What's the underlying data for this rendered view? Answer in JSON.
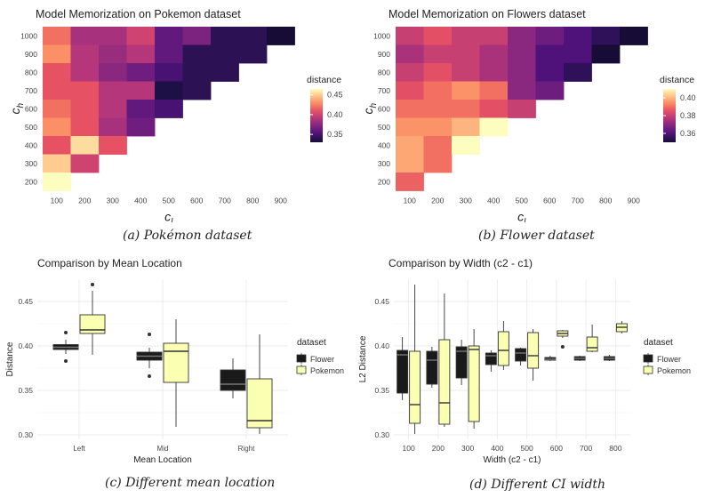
{
  "captions": {
    "a_label": "(a)",
    "a_text": "Pokémon dataset",
    "b_label": "(b)",
    "b_text": "Flower dataset",
    "c_label": "(c)",
    "c_text": "Different mean location",
    "d_label": "(d)",
    "d_text": "Different CI width"
  },
  "chart_data": [
    {
      "type": "heatmap",
      "title": "Model Memorization on Pokemon dataset",
      "xlabel": "c_l",
      "ylabel": "c_h",
      "x_ticks": [
        100,
        200,
        300,
        400,
        500,
        600,
        700,
        800,
        900
      ],
      "y_ticks": [
        200,
        300,
        400,
        500,
        600,
        700,
        800,
        900,
        1000
      ],
      "legend_title": "distance",
      "legend_ticks": [
        0.45,
        0.4,
        0.35
      ],
      "color_range": [
        0.33,
        0.465
      ],
      "cells": [
        [
          100,
          1000,
          0.42
        ],
        [
          200,
          1000,
          0.385
        ],
        [
          300,
          1000,
          0.385
        ],
        [
          400,
          1000,
          0.4
        ],
        [
          500,
          1000,
          0.36
        ],
        [
          600,
          1000,
          0.37
        ],
        [
          700,
          1000,
          0.34
        ],
        [
          800,
          1000,
          0.34
        ],
        [
          900,
          1000,
          0.33
        ],
        [
          100,
          900,
          0.43
        ],
        [
          200,
          900,
          0.39
        ],
        [
          300,
          900,
          0.38
        ],
        [
          400,
          900,
          0.39
        ],
        [
          500,
          900,
          0.36
        ],
        [
          600,
          900,
          0.34
        ],
        [
          700,
          900,
          0.34
        ],
        [
          800,
          900,
          0.34
        ],
        [
          100,
          800,
          0.41
        ],
        [
          200,
          800,
          0.39
        ],
        [
          300,
          800,
          0.375
        ],
        [
          400,
          800,
          0.365
        ],
        [
          500,
          800,
          0.35
        ],
        [
          600,
          800,
          0.34
        ],
        [
          700,
          800,
          0.34
        ],
        [
          100,
          700,
          0.41
        ],
        [
          200,
          700,
          0.41
        ],
        [
          300,
          700,
          0.39
        ],
        [
          400,
          700,
          0.39
        ],
        [
          500,
          700,
          0.335
        ],
        [
          600,
          700,
          0.34
        ],
        [
          100,
          600,
          0.42
        ],
        [
          200,
          600,
          0.41
        ],
        [
          300,
          600,
          0.39
        ],
        [
          400,
          600,
          0.36
        ],
        [
          500,
          600,
          0.35
        ],
        [
          100,
          500,
          0.43
        ],
        [
          200,
          500,
          0.41
        ],
        [
          300,
          500,
          0.385
        ],
        [
          400,
          500,
          0.365
        ],
        [
          100,
          400,
          0.41
        ],
        [
          200,
          400,
          0.455
        ],
        [
          300,
          400,
          0.41
        ],
        [
          100,
          300,
          0.45
        ],
        [
          200,
          300,
          0.4
        ],
        [
          100,
          200,
          0.465
        ]
      ]
    },
    {
      "type": "heatmap",
      "title": "Model Memorization on Flowers dataset",
      "xlabel": "c_l",
      "ylabel": "c_h",
      "x_ticks": [
        100,
        200,
        300,
        400,
        500,
        600,
        700,
        800,
        900
      ],
      "y_ticks": [
        200,
        300,
        400,
        500,
        600,
        700,
        800,
        900,
        1000
      ],
      "legend_title": "distance",
      "legend_ticks": [
        0.4,
        0.38,
        0.36
      ],
      "color_range": [
        0.35,
        0.41
      ],
      "cells": [
        [
          100,
          1000,
          0.38
        ],
        [
          200,
          1000,
          0.385
        ],
        [
          300,
          1000,
          0.38
        ],
        [
          400,
          1000,
          0.38
        ],
        [
          500,
          1000,
          0.37
        ],
        [
          600,
          1000,
          0.365
        ],
        [
          700,
          1000,
          0.36
        ],
        [
          800,
          1000,
          0.355
        ],
        [
          900,
          1000,
          0.35
        ],
        [
          100,
          900,
          0.375
        ],
        [
          200,
          900,
          0.38
        ],
        [
          300,
          900,
          0.38
        ],
        [
          400,
          900,
          0.375
        ],
        [
          500,
          900,
          0.37
        ],
        [
          600,
          900,
          0.36
        ],
        [
          700,
          900,
          0.36
        ],
        [
          800,
          900,
          0.35
        ],
        [
          100,
          800,
          0.38
        ],
        [
          200,
          800,
          0.385
        ],
        [
          300,
          800,
          0.38
        ],
        [
          400,
          800,
          0.375
        ],
        [
          500,
          800,
          0.37
        ],
        [
          600,
          800,
          0.36
        ],
        [
          700,
          800,
          0.355
        ],
        [
          100,
          700,
          0.385
        ],
        [
          200,
          700,
          0.39
        ],
        [
          300,
          700,
          0.395
        ],
        [
          400,
          700,
          0.39
        ],
        [
          500,
          700,
          0.37
        ],
        [
          600,
          700,
          0.365
        ],
        [
          100,
          600,
          0.39
        ],
        [
          200,
          600,
          0.39
        ],
        [
          300,
          600,
          0.39
        ],
        [
          400,
          600,
          0.385
        ],
        [
          500,
          600,
          0.38
        ],
        [
          100,
          500,
          0.395
        ],
        [
          200,
          500,
          0.395
        ],
        [
          300,
          500,
          0.4
        ],
        [
          400,
          500,
          0.41
        ],
        [
          100,
          400,
          0.398
        ],
        [
          200,
          400,
          0.39
        ],
        [
          300,
          400,
          0.412
        ],
        [
          100,
          300,
          0.398
        ],
        [
          200,
          300,
          0.39
        ],
        [
          100,
          200,
          0.388
        ]
      ]
    },
    {
      "type": "boxplot",
      "title": "Comparison by Mean Location",
      "xlabel": "Mean Location",
      "ylabel": "Distance",
      "categories": [
        "Left",
        "Mid",
        "Right"
      ],
      "y_ticks": [
        0.3,
        0.35,
        0.4,
        0.45
      ],
      "ylim": [
        0.295,
        0.475
      ],
      "legend_title": "dataset",
      "series": [
        {
          "name": "Flower",
          "color": "#1a1a1a",
          "boxes": [
            {
              "min": 0.391,
              "q1": 0.396,
              "median": 0.3985,
              "q3": 0.4015,
              "max": 0.407,
              "outliers": [
                0.383,
                0.415
              ]
            },
            {
              "min": 0.375,
              "q1": 0.384,
              "median": 0.3885,
              "q3": 0.393,
              "max": 0.398,
              "outliers": [
                0.366,
                0.413
              ]
            },
            {
              "min": 0.341,
              "q1": 0.35,
              "median": 0.357,
              "q3": 0.373,
              "max": 0.386,
              "outliers": []
            }
          ]
        },
        {
          "name": "Pokemon",
          "color": "#fbffb2",
          "boxes": [
            {
              "min": 0.39,
              "q1": 0.414,
              "median": 0.418,
              "q3": 0.435,
              "max": 0.462,
              "outliers": [
                0.469
              ]
            },
            {
              "min": 0.309,
              "q1": 0.359,
              "median": 0.394,
              "q3": 0.403,
              "max": 0.43,
              "outliers": []
            },
            {
              "min": 0.301,
              "q1": 0.308,
              "median": 0.316,
              "q3": 0.363,
              "max": 0.413,
              "outliers": []
            }
          ]
        }
      ]
    },
    {
      "type": "boxplot",
      "title": "Comparison by Width (c2 - c1)",
      "xlabel": "Width (c2 - c1)",
      "ylabel": "L2 Distance",
      "categories": [
        "100",
        "200",
        "300",
        "400",
        "500",
        "600",
        "700",
        "800"
      ],
      "y_ticks": [
        0.3,
        0.35,
        0.4,
        0.45
      ],
      "ylim": [
        0.295,
        0.475
      ],
      "legend_title": "dataset",
      "series": [
        {
          "name": "Flower",
          "color": "#1a1a1a",
          "boxes": [
            {
              "min": 0.339,
              "q1": 0.347,
              "median": 0.39,
              "q3": 0.395,
              "max": 0.41,
              "outliers": []
            },
            {
              "min": 0.353,
              "q1": 0.357,
              "median": 0.384,
              "q3": 0.394,
              "max": 0.399,
              "outliers": []
            },
            {
              "min": 0.356,
              "q1": 0.364,
              "median": 0.394,
              "q3": 0.399,
              "max": 0.407,
              "outliers": []
            },
            {
              "min": 0.371,
              "q1": 0.379,
              "median": 0.389,
              "q3": 0.392,
              "max": 0.395,
              "outliers": []
            },
            {
              "min": 0.378,
              "q1": 0.383,
              "median": 0.392,
              "q3": 0.397,
              "max": 0.398,
              "outliers": []
            },
            {
              "min": 0.383,
              "q1": 0.384,
              "median": 0.385,
              "q3": 0.387,
              "max": 0.389,
              "outliers": []
            },
            {
              "min": 0.383,
              "q1": 0.384,
              "median": 0.386,
              "q3": 0.388,
              "max": 0.389,
              "outliers": []
            },
            {
              "min": 0.383,
              "q1": 0.384,
              "median": 0.386,
              "q3": 0.388,
              "max": 0.39,
              "outliers": []
            }
          ]
        },
        {
          "name": "Pokemon",
          "color": "#fbffb2",
          "boxes": [
            {
              "min": 0.301,
              "q1": 0.313,
              "median": 0.334,
              "q3": 0.394,
              "max": 0.469,
              "outliers": []
            },
            {
              "min": 0.309,
              "q1": 0.312,
              "median": 0.336,
              "q3": 0.407,
              "max": 0.459,
              "outliers": []
            },
            {
              "min": 0.307,
              "q1": 0.315,
              "median": 0.396,
              "q3": 0.4,
              "max": 0.419,
              "outliers": []
            },
            {
              "min": 0.373,
              "q1": 0.378,
              "median": 0.395,
              "q3": 0.416,
              "max": 0.428,
              "outliers": []
            },
            {
              "min": 0.361,
              "q1": 0.375,
              "median": 0.389,
              "q3": 0.415,
              "max": 0.419,
              "outliers": []
            },
            {
              "min": 0.409,
              "q1": 0.411,
              "median": 0.414,
              "q3": 0.417,
              "max": 0.418,
              "outliers": [
                0.399
              ]
            },
            {
              "min": 0.393,
              "q1": 0.394,
              "median": 0.398,
              "q3": 0.41,
              "max": 0.424,
              "outliers": []
            },
            {
              "min": 0.414,
              "q1": 0.416,
              "median": 0.421,
              "q3": 0.425,
              "max": 0.428,
              "outliers": []
            }
          ]
        }
      ]
    }
  ]
}
